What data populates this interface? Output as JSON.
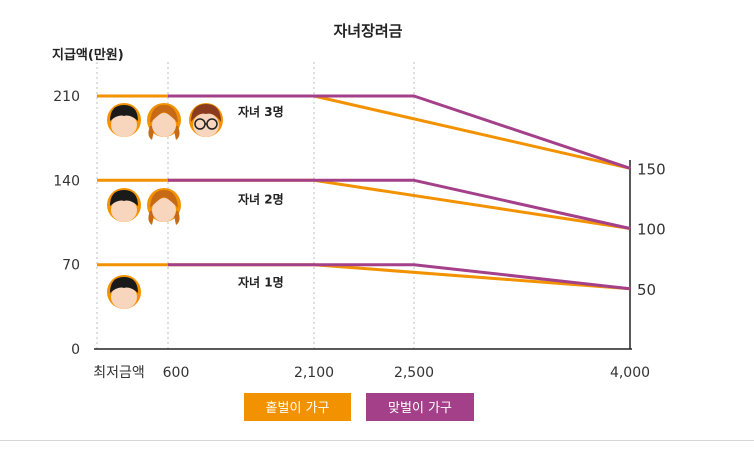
{
  "chart_data": {
    "type": "line",
    "title": "자녀장려금",
    "ylabel": "지급액(만원)",
    "xlabel": "",
    "x_ticks": [
      "최저금액",
      "600",
      "2,100",
      "2,500",
      "4,000"
    ],
    "y_ticks": [
      "0",
      "70",
      "140",
      "210"
    ],
    "right_ticks": [
      "150",
      "100",
      "50"
    ],
    "ylim": [
      0,
      230
    ],
    "legend_position": "bottom",
    "colors": {
      "single": "#f39200",
      "dual": "#a4408a"
    },
    "groups": [
      {
        "label": "자녀 3명",
        "children_icons": [
          "boy",
          "girl",
          "glasses-kid"
        ],
        "single": {
          "x": [
            "최저금액",
            "600",
            "2,100",
            "4,000"
          ],
          "y": [
            210,
            210,
            210,
            150
          ]
        },
        "dual": {
          "x": [
            "600",
            "2,500",
            "4,000"
          ],
          "y": [
            210,
            210,
            150
          ]
        }
      },
      {
        "label": "자녀 2명",
        "children_icons": [
          "boy",
          "girl"
        ],
        "single": {
          "x": [
            "최저금액",
            "600",
            "2,100",
            "4,000"
          ],
          "y": [
            140,
            140,
            140,
            100
          ]
        },
        "dual": {
          "x": [
            "600",
            "2,500",
            "4,000"
          ],
          "y": [
            140,
            140,
            100
          ]
        }
      },
      {
        "label": "자녀 1명",
        "children_icons": [
          "boy"
        ],
        "single": {
          "x": [
            "최저금액",
            "600",
            "2,100",
            "4,000"
          ],
          "y": [
            70,
            70,
            70,
            50
          ]
        },
        "dual": {
          "x": [
            "600",
            "2,500",
            "4,000"
          ],
          "y": [
            70,
            70,
            50
          ]
        }
      }
    ],
    "legend": [
      {
        "label": "홑벌이 가구",
        "series": "single"
      },
      {
        "label": "맞벌이 가구",
        "series": "dual"
      }
    ]
  }
}
